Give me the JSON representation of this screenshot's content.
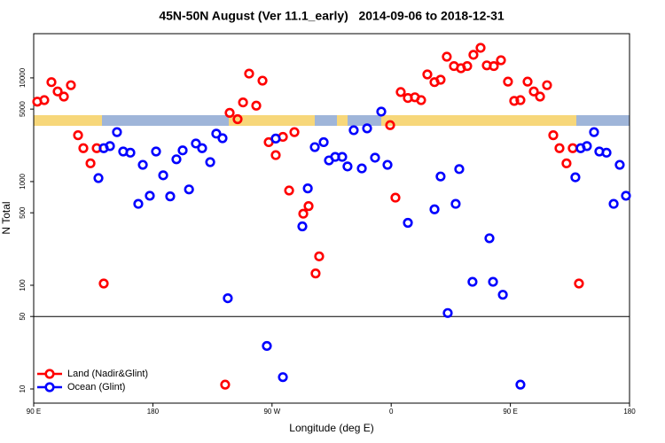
{
  "chart_data": {
    "type": "scatter",
    "title": "45N-50N August (Ver 11.1_early)   2014-09-06 to 2018-12-31",
    "x_label": "Longitude (deg E)",
    "y_label": "N Total",
    "log_y": true,
    "legend": "bottom-left",
    "hline": 50,
    "xlim": [
      90,
      540
    ],
    "ylim": [
      7.3,
      26700
    ],
    "xticks": [
      {
        "value": 90,
        "label": "90 E"
      },
      180,
      {
        "value": 270,
        "label": "90 W"
      },
      {
        "value": 360,
        "label": "0"
      },
      {
        "value": 450,
        "label": "90 E"
      },
      {
        "value": 540,
        "label": "180"
      }
    ],
    "yticks": [
      10,
      50,
      100,
      500,
      1000,
      5000,
      10000
    ],
    "series": [
      {
        "name": "Land (Nadir&Glint)",
        "color": "#ff0000",
        "x": [
          92.7,
          98.0,
          103.4,
          108.1,
          112.8,
          118.1,
          123.5,
          127.5,
          132.9,
          137.6,
          142.9,
          234.6,
          238.0,
          244.0,
          248.1,
          252.7,
          258.1,
          262.8,
          267.5,
          272.8,
          278.2,
          282.9,
          286.9,
          293.6,
          297.6,
          302.9,
          305.6,
          359.2,
          363.2,
          367.2,
          372.6,
          377.9,
          382.6,
          387.3,
          392.7,
          397.3,
          402.0,
          407.4,
          412.7,
          417.4,
          422.1,
          427.5,
          432.2,
          437.5,
          442.9,
          448.2,
          452.9,
          457.6,
          463.0,
          467.7,
          472.4,
          477.7,
          482.4,
          487.1,
          492.4,
          497.1,
          501.8
        ],
        "values": [
          5900,
          6100,
          9100,
          7400,
          6600,
          8500,
          2800,
          2100,
          1500,
          2100,
          104,
          11,
          4600,
          4000,
          5800,
          11000,
          5400,
          9400,
          2400,
          1800,
          2700,
          820,
          3000,
          490,
          580,
          130,
          190,
          3500,
          700,
          7300,
          6400,
          6500,
          6100,
          10800,
          9100,
          9600,
          16000,
          13000,
          12400,
          13000,
          16700,
          19500,
          13200,
          13000,
          14800,
          9200,
          6000,
          6100,
          9200,
          7400,
          6600,
          8500,
          2800,
          2100,
          1500,
          2100,
          104
        ]
      },
      {
        "name": "Ocean (Glint)",
        "color": "#0000ff",
        "x": [
          138.9,
          142.9,
          147.6,
          152.9,
          157.6,
          163.0,
          169.0,
          172.4,
          177.7,
          182.4,
          187.8,
          193.1,
          197.8,
          202.5,
          207.3,
          212.5,
          217.2,
          223.3,
          227.9,
          232.6,
          236.6,
          266.1,
          272.8,
          278.2,
          292.9,
          297.0,
          302.3,
          309.0,
          313.0,
          317.7,
          323.0,
          327.0,
          331.7,
          337.8,
          341.8,
          347.8,
          352.5,
          357.2,
          372.6,
          392.7,
          397.3,
          402.7,
          408.7,
          411.4,
          421.4,
          434.2,
          436.9,
          444.3,
          457.6,
          499.1,
          503.1,
          507.8,
          513.2,
          517.2,
          522.6,
          528.0,
          532.6,
          537.3
        ],
        "values": [
          1080,
          2100,
          2200,
          3000,
          1950,
          1900,
          610,
          1450,
          730,
          1950,
          1150,
          720,
          1640,
          2000,
          840,
          2330,
          2100,
          1540,
          2900,
          2620,
          75,
          26,
          2600,
          13,
          370,
          860,
          2150,
          2400,
          1600,
          1730,
          1730,
          1400,
          3130,
          1340,
          3260,
          1700,
          4730,
          1450,
          400,
          540,
          1120,
          54,
          610,
          1320,
          108,
          284,
          108,
          81,
          11,
          1100,
          2100,
          2200,
          3000,
          1950,
          1900,
          610,
          1450,
          730
        ]
      }
    ]
  }
}
